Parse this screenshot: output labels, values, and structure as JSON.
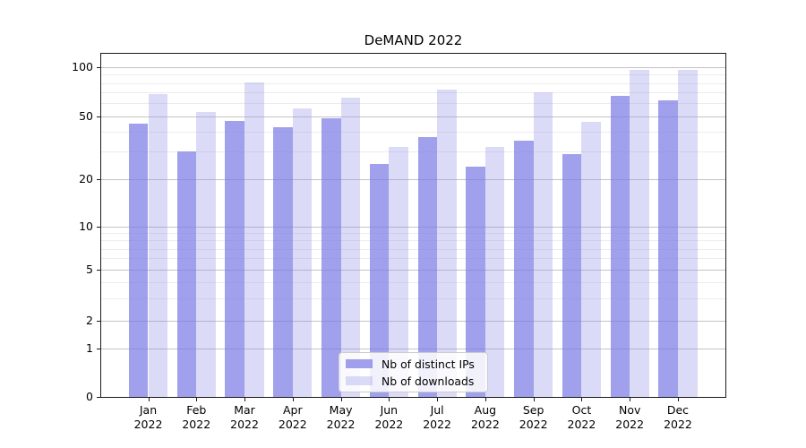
{
  "title": "DeMAND 2022",
  "chart_data": {
    "type": "bar",
    "title": "DeMAND 2022",
    "categories": [
      "Jan 2022",
      "Feb 2022",
      "Mar 2022",
      "Apr 2022",
      "May 2022",
      "Jun 2022",
      "Jul 2022",
      "Aug 2022",
      "Sep 2022",
      "Oct 2022",
      "Nov 2022",
      "Dec 2022"
    ],
    "series": [
      {
        "name": "Nb of distinct IPs",
        "color": "#a1a1ec",
        "color_rgba": "rgba(124,124,229,0.72)",
        "values": [
          45,
          30,
          47,
          43,
          49,
          25,
          37,
          24,
          35,
          29,
          67,
          63
        ]
      },
      {
        "name": "Nb of downloads",
        "color": "#dbdbf8",
        "color_rgba": "rgba(150,150,235,0.34)",
        "values": [
          68,
          53,
          81,
          56,
          65,
          32,
          73,
          32,
          70,
          46,
          96,
          96
        ]
      }
    ],
    "xlabel": "",
    "ylabel": "",
    "yticks": [
      0,
      1,
      2,
      5,
      10,
      20,
      50,
      100
    ],
    "minor_yticks": [
      3,
      4,
      6,
      7,
      8,
      9,
      30,
      40,
      60,
      70,
      80,
      90
    ],
    "ylim": [
      0,
      110
    ],
    "yscale": "log-like with linear 0-1 segment",
    "grid": true,
    "legend_position": "lower center inside plot"
  }
}
